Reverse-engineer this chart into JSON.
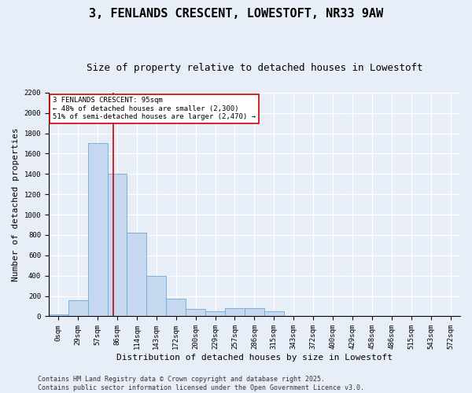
{
  "title": "3, FENLANDS CRESCENT, LOWESTOFT, NR33 9AW",
  "subtitle": "Size of property relative to detached houses in Lowestoft",
  "xlabel": "Distribution of detached houses by size in Lowestoft",
  "ylabel": "Number of detached properties",
  "categories": [
    "0sqm",
    "29sqm",
    "57sqm",
    "86sqm",
    "114sqm",
    "143sqm",
    "172sqm",
    "200sqm",
    "229sqm",
    "257sqm",
    "286sqm",
    "315sqm",
    "343sqm",
    "372sqm",
    "400sqm",
    "429sqm",
    "458sqm",
    "486sqm",
    "515sqm",
    "543sqm",
    "572sqm"
  ],
  "values": [
    20,
    160,
    1700,
    1400,
    820,
    400,
    170,
    70,
    50,
    80,
    80,
    50,
    0,
    0,
    0,
    0,
    0,
    0,
    0,
    0,
    0
  ],
  "bar_color": "#c5d8f0",
  "bar_edge_color": "#6aaad4",
  "vline_color": "#cc0000",
  "vline_x": 3.0,
  "annotation_text": "3 FENLANDS CRESCENT: 95sqm\n← 48% of detached houses are smaller (2,300)\n51% of semi-detached houses are larger (2,470) →",
  "annotation_box_facecolor": "#ffffff",
  "annotation_box_edgecolor": "#cc0000",
  "ylim": [
    0,
    2200
  ],
  "yticks": [
    0,
    200,
    400,
    600,
    800,
    1000,
    1200,
    1400,
    1600,
    1800,
    2000,
    2200
  ],
  "footer_line1": "Contains HM Land Registry data © Crown copyright and database right 2025.",
  "footer_line2": "Contains public sector information licensed under the Open Government Licence v3.0.",
  "background_color": "#e8eef8",
  "plot_background_color": "#e8eef8",
  "grid_color": "#ffffff",
  "title_fontsize": 11,
  "subtitle_fontsize": 9,
  "tick_fontsize": 6.5,
  "label_fontsize": 8,
  "annotation_fontsize": 6.5,
  "footer_fontsize": 6
}
